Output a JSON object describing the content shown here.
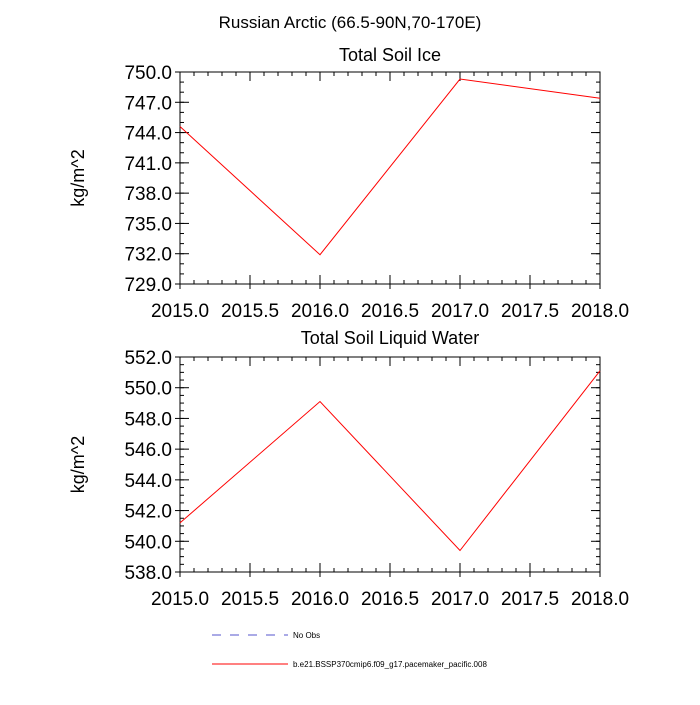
{
  "figure_title": "Russian Arctic (66.5-90N,70-170E)",
  "chart_data": [
    {
      "type": "line",
      "title": "Total Soil Ice",
      "xlabel": "",
      "ylabel": "kg/m^2",
      "xlim": [
        2015.0,
        2018.0
      ],
      "ylim": [
        729.0,
        750.0
      ],
      "x_ticks": [
        2015.0,
        2015.5,
        2016.0,
        2016.5,
        2017.0,
        2017.5,
        2018.0
      ],
      "x_tick_labels": [
        "2015.0",
        "2015.5",
        "2016.0",
        "2016.5",
        "2017.0",
        "2017.5",
        "2018.0"
      ],
      "y_ticks": [
        729.0,
        732.0,
        735.0,
        738.0,
        741.0,
        744.0,
        747.0,
        750.0
      ],
      "y_tick_labels": [
        "729.0",
        "732.0",
        "735.0",
        "738.0",
        "741.0",
        "744.0",
        "747.0",
        "750.0"
      ],
      "y_minor_step": 1.0,
      "x_minor_step": 0.1,
      "grid": false,
      "series": [
        {
          "name": "b.e21.BSSP370cmip6.f09_g17.pacemaker_pacific.008",
          "color": "#ff0000",
          "x": [
            2015.0,
            2016.0,
            2017.0,
            2018.0
          ],
          "values": [
            744.6,
            731.9,
            749.3,
            747.4
          ]
        }
      ]
    },
    {
      "type": "line",
      "title": "Total Soil Liquid Water",
      "xlabel": "",
      "ylabel": "kg/m^2",
      "xlim": [
        2015.0,
        2018.0
      ],
      "ylim": [
        538.0,
        552.0
      ],
      "x_ticks": [
        2015.0,
        2015.5,
        2016.0,
        2016.5,
        2017.0,
        2017.5,
        2018.0
      ],
      "x_tick_labels": [
        "2015.0",
        "2015.5",
        "2016.0",
        "2016.5",
        "2017.0",
        "2017.5",
        "2018.0"
      ],
      "y_ticks": [
        538.0,
        540.0,
        542.0,
        544.0,
        546.0,
        548.0,
        550.0,
        552.0
      ],
      "y_tick_labels": [
        "538.0",
        "540.0",
        "542.0",
        "544.0",
        "546.0",
        "548.0",
        "550.0",
        "552.0"
      ],
      "y_minor_step": 0.5,
      "x_minor_step": 0.1,
      "grid": false,
      "series": [
        {
          "name": "b.e21.BSSP370cmip6.f09_g17.pacemaker_pacific.008",
          "color": "#ff0000",
          "x": [
            2015.0,
            2016.0,
            2017.0,
            2018.0
          ],
          "values": [
            541.2,
            549.1,
            539.4,
            551.1
          ]
        }
      ]
    }
  ],
  "legend": {
    "placement": "bottom",
    "items": [
      {
        "label": "No Obs",
        "color": "#5555cc",
        "style": "dashed"
      },
      {
        "label": "b.e21.BSSP370cmip6.f09_g17.pacemaker_pacific.008",
        "color": "#ff0000",
        "style": "solid"
      }
    ]
  }
}
